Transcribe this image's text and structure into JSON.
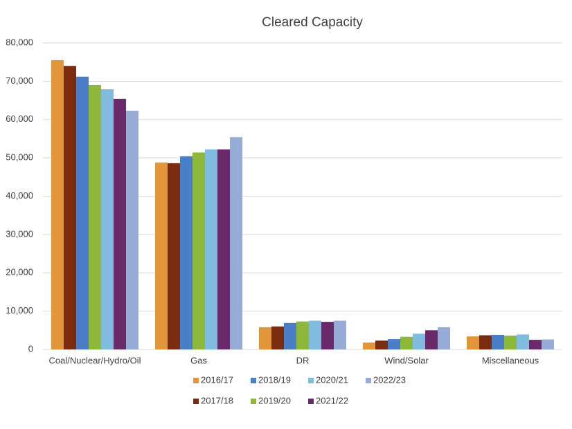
{
  "chart_data": {
    "type": "bar",
    "title": "Cleared Capacity",
    "categories": [
      "Coal/Nuclear/Hydro/Oil",
      "Gas",
      "DR",
      "Wind/Solar",
      "Miscellaneous"
    ],
    "series": [
      {
        "name": "2016/17",
        "color": "#e3953a",
        "values": [
          75500,
          48800,
          5800,
          1800,
          3400
        ]
      },
      {
        "name": "2017/18",
        "color": "#7b2c0e",
        "values": [
          74000,
          48600,
          6000,
          2300,
          3700
        ]
      },
      {
        "name": "2018/19",
        "color": "#4a7fc8",
        "values": [
          71200,
          50400,
          6900,
          2700,
          3800
        ]
      },
      {
        "name": "2019/20",
        "color": "#8db83a",
        "values": [
          69000,
          51400,
          7300,
          3300,
          3600
        ]
      },
      {
        "name": "2020/21",
        "color": "#7fbce0",
        "values": [
          67900,
          52200,
          7500,
          4100,
          3900
        ]
      },
      {
        "name": "2021/22",
        "color": "#6a2a6a",
        "values": [
          65400,
          52200,
          7200,
          5000,
          2500
        ]
      },
      {
        "name": "2022/23",
        "color": "#96abd6",
        "values": [
          62300,
          55400,
          7500,
          5800,
          2600
        ]
      }
    ],
    "ylim": [
      0,
      80000
    ],
    "yticks": [
      0,
      {
        "value": 10000,
        "label": "10,000"
      },
      {
        "value": 20000,
        "label": "20,000"
      },
      {
        "value": 30000,
        "label": "30,000"
      },
      {
        "value": 40000,
        "label": "40,000"
      },
      {
        "value": 50000,
        "label": "50,000"
      },
      {
        "value": 60000,
        "label": "60,000"
      },
      {
        "value": 70000,
        "label": "70,000"
      },
      {
        "value": 80000,
        "label": "80,000"
      }
    ],
    "grid": true
  }
}
